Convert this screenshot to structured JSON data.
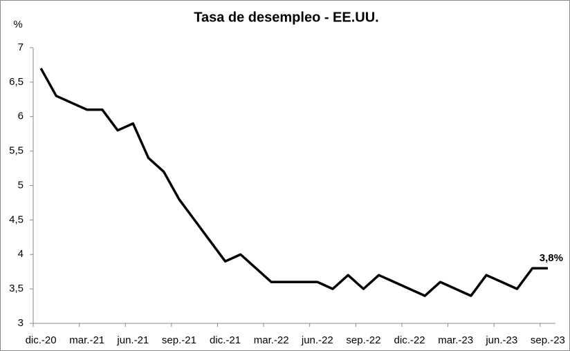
{
  "chart_data": {
    "type": "line",
    "title": "Tasa de desempleo - EE.UU.",
    "y_label": "%",
    "categories": [
      "dic.-20",
      null,
      null,
      "mar.-21",
      null,
      null,
      "jun.-21",
      null,
      null,
      "sep.-21",
      null,
      null,
      "dic.-21",
      null,
      null,
      "mar.-22",
      null,
      null,
      "jun.-22",
      null,
      null,
      "sep.-22",
      null,
      null,
      "dic.-22",
      null,
      null,
      "mar.-23",
      null,
      null,
      "jun.-23",
      null,
      null,
      "sep.-23"
    ],
    "values": [
      6.7,
      6.3,
      6.2,
      6.1,
      6.1,
      5.8,
      5.9,
      5.4,
      5.2,
      4.8,
      4.5,
      4.2,
      3.9,
      4.0,
      3.8,
      3.6,
      3.6,
      3.6,
      3.6,
      3.5,
      3.7,
      3.5,
      3.7,
      3.6,
      3.5,
      3.4,
      3.6,
      3.5,
      3.4,
      3.7,
      3.6,
      3.5,
      3.8,
      3.8
    ],
    "value_labels": [
      null,
      null,
      null,
      null,
      null,
      null,
      null,
      null,
      null,
      null,
      null,
      null,
      null,
      null,
      null,
      null,
      null,
      null,
      null,
      null,
      null,
      null,
      null,
      null,
      null,
      null,
      null,
      null,
      null,
      null,
      null,
      null,
      null,
      "3,8%"
    ],
    "color": "#000000",
    "ylim": [
      3,
      7
    ],
    "yticks": [
      3,
      {
        "value": 3.5,
        "label": "3,5"
      },
      4,
      {
        "value": 4.5,
        "label": "4,5"
      },
      5,
      {
        "value": 5.5,
        "label": "5,5"
      },
      6,
      {
        "value": 6.5,
        "label": "6,5"
      },
      7
    ],
    "grid": false
  }
}
